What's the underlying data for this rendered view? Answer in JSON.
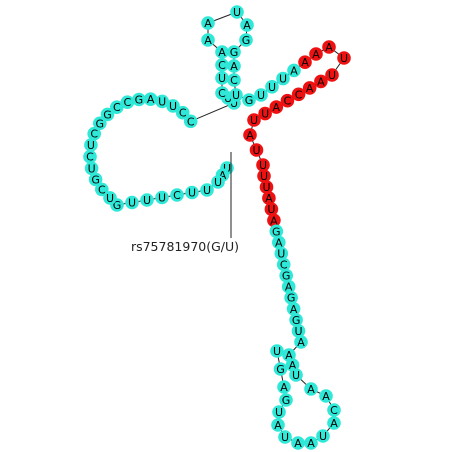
{
  "colors": {
    "normal": "#2fe8d8",
    "highlight": "#ee1111",
    "backbone": "#222222"
  },
  "snp_label": "rs75781970(G/U)",
  "sequence": [
    {
      "b": "U",
      "c": "n"
    },
    {
      "b": "A",
      "c": "n"
    },
    {
      "b": "U",
      "c": "n"
    },
    {
      "b": "U",
      "c": "n"
    },
    {
      "b": "U",
      "c": "n"
    },
    {
      "b": "C",
      "c": "n"
    },
    {
      "b": "U",
      "c": "n"
    },
    {
      "b": "U",
      "c": "n"
    },
    {
      "b": "U",
      "c": "n"
    },
    {
      "b": "G",
      "c": "n"
    },
    {
      "b": "U",
      "c": "n"
    },
    {
      "b": "C",
      "c": "n"
    },
    {
      "b": "G",
      "c": "n"
    },
    {
      "b": "U",
      "c": "n"
    },
    {
      "b": "C",
      "c": "n"
    },
    {
      "b": "U",
      "c": "n"
    },
    {
      "b": "C",
      "c": "n"
    },
    {
      "b": "G",
      "c": "n"
    },
    {
      "b": "G",
      "c": "n"
    },
    {
      "b": "C",
      "c": "n"
    },
    {
      "b": "C",
      "c": "n"
    },
    {
      "b": "G",
      "c": "n"
    },
    {
      "b": "A",
      "c": "n"
    },
    {
      "b": "U",
      "c": "n"
    },
    {
      "b": "U",
      "c": "n"
    },
    {
      "b": "C",
      "c": "n"
    },
    {
      "b": "C",
      "c": "n"
    },
    {
      "b": "U",
      "c": "n"
    },
    {
      "b": "U",
      "c": "n"
    },
    {
      "b": "C",
      "c": "n"
    },
    {
      "b": "U",
      "c": "n"
    },
    {
      "b": "C",
      "c": "n"
    },
    {
      "b": "A",
      "c": "n"
    },
    {
      "b": "A",
      "c": "n"
    },
    {
      "b": "A",
      "c": "n"
    },
    {
      "b": "U",
      "c": "n"
    },
    {
      "b": "A",
      "c": "n"
    },
    {
      "b": "G",
      "c": "n"
    },
    {
      "b": "G",
      "c": "n"
    },
    {
      "b": "A",
      "c": "n"
    },
    {
      "b": "C",
      "c": "n"
    },
    {
      "b": "U",
      "c": "n"
    },
    {
      "b": "G",
      "c": "n"
    },
    {
      "b": "U",
      "c": "n"
    },
    {
      "b": "U",
      "c": "n"
    },
    {
      "b": "U",
      "c": "n"
    },
    {
      "b": "A",
      "c": "n"
    },
    {
      "b": "A",
      "c": "h"
    },
    {
      "b": "A",
      "c": "h"
    },
    {
      "b": "A",
      "c": "h"
    },
    {
      "b": "U",
      "c": "h"
    },
    {
      "b": "U",
      "c": "h"
    },
    {
      "b": "A",
      "c": "h"
    },
    {
      "b": "A",
      "c": "h"
    },
    {
      "b": "C",
      "c": "h"
    },
    {
      "b": "C",
      "c": "h"
    },
    {
      "b": "A",
      "c": "h"
    },
    {
      "b": "U",
      "c": "h"
    },
    {
      "b": "U",
      "c": "h"
    },
    {
      "b": "A",
      "c": "h"
    },
    {
      "b": "U",
      "c": "h"
    },
    {
      "b": "U",
      "c": "h"
    },
    {
      "b": "U",
      "c": "h"
    },
    {
      "b": "U",
      "c": "h"
    },
    {
      "b": "A",
      "c": "h"
    },
    {
      "b": "U",
      "c": "h"
    },
    {
      "b": "A",
      "c": "h"
    },
    {
      "b": "G",
      "c": "n"
    },
    {
      "b": "A",
      "c": "n"
    },
    {
      "b": "U",
      "c": "n"
    },
    {
      "b": "C",
      "c": "n"
    },
    {
      "b": "G",
      "c": "n"
    },
    {
      "b": "A",
      "c": "n"
    },
    {
      "b": "G",
      "c": "n"
    },
    {
      "b": "A",
      "c": "n"
    },
    {
      "b": "G",
      "c": "n"
    },
    {
      "b": "U",
      "c": "n"
    },
    {
      "b": "A",
      "c": "n"
    },
    {
      "b": "A",
      "c": "n"
    },
    {
      "b": "A",
      "c": "n"
    },
    {
      "b": "U",
      "c": "n"
    },
    {
      "b": "A",
      "c": "n"
    },
    {
      "b": "A",
      "c": "n"
    },
    {
      "b": "C",
      "c": "n"
    },
    {
      "b": "A",
      "c": "n"
    },
    {
      "b": "U",
      "c": "n"
    },
    {
      "b": "A",
      "c": "n"
    },
    {
      "b": "A",
      "c": "n"
    },
    {
      "b": "U",
      "c": "n"
    },
    {
      "b": "A",
      "c": "n"
    },
    {
      "b": "U",
      "c": "n"
    },
    {
      "b": "G",
      "c": "n"
    },
    {
      "b": "A",
      "c": "n"
    },
    {
      "b": "G",
      "c": "n"
    },
    {
      "b": "U",
      "c": "n"
    }
  ]
}
